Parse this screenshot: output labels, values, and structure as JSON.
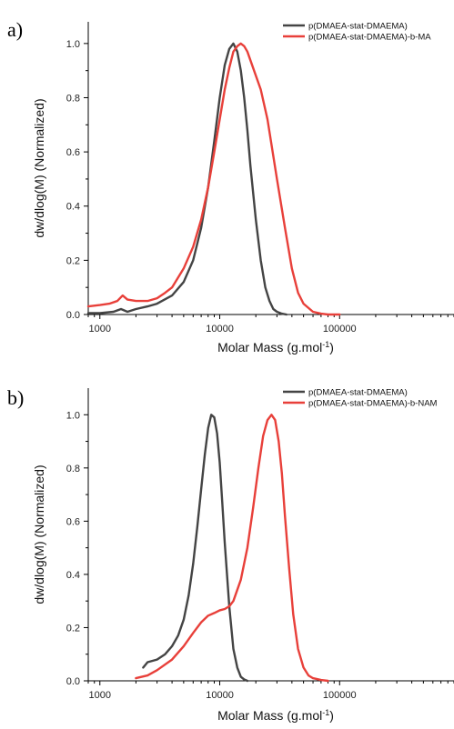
{
  "chart_data": [
    {
      "type": "line",
      "panel_label": "a)",
      "xlabel": "Molar Mass (g.mol",
      "xlabel_sup": "-1",
      "ylabel": "dw/dlog(M) (Normalized)",
      "xscale": "log",
      "xlim": [
        800,
        900000
      ],
      "ylim": [
        0,
        1.08
      ],
      "xticks": [
        1000,
        10000,
        100000
      ],
      "xtick_labels": [
        "1000",
        "10000",
        "100000"
      ],
      "yticks": [
        0.0,
        0.2,
        0.4,
        0.6,
        0.8,
        1.0
      ],
      "ytick_labels": [
        "0.0",
        "0.2",
        "0.4",
        "0.6",
        "0.8",
        "1.0"
      ],
      "legend": "top-right",
      "grid": false,
      "series": [
        {
          "name": "p(DMAEA-stat-DMAEMA)",
          "color": "#444444",
          "x": [
            800,
            1000,
            1300,
            1500,
            1700,
            2000,
            2500,
            3000,
            4000,
            5000,
            6000,
            7000,
            8000,
            9000,
            10000,
            11000,
            12000,
            13000,
            14000,
            15000,
            16000,
            17000,
            18000,
            20000,
            22000,
            24000,
            26000,
            28000,
            30000,
            33000,
            36000
          ],
          "y": [
            0.005,
            0.005,
            0.01,
            0.02,
            0.01,
            0.02,
            0.03,
            0.04,
            0.07,
            0.12,
            0.2,
            0.32,
            0.47,
            0.64,
            0.8,
            0.92,
            0.98,
            1.0,
            0.97,
            0.9,
            0.8,
            0.68,
            0.55,
            0.35,
            0.2,
            0.1,
            0.05,
            0.02,
            0.01,
            0.003,
            0.0
          ]
        },
        {
          "name": "p(DMAEA-stat-DMAEMA)-b-MA",
          "color": "#e8403a",
          "x": [
            800,
            1000,
            1200,
            1400,
            1550,
            1700,
            2000,
            2500,
            3000,
            3500,
            4000,
            5000,
            6000,
            7000,
            8000,
            9000,
            10000,
            11000,
            12000,
            13000,
            14000,
            15000,
            16000,
            17000,
            19000,
            22000,
            25000,
            30000,
            35000,
            40000,
            45000,
            50000,
            60000,
            70000,
            80000,
            100000
          ],
          "y": [
            0.03,
            0.035,
            0.04,
            0.05,
            0.07,
            0.055,
            0.05,
            0.05,
            0.06,
            0.08,
            0.1,
            0.17,
            0.25,
            0.35,
            0.47,
            0.6,
            0.72,
            0.83,
            0.91,
            0.97,
            0.99,
            1.0,
            0.99,
            0.97,
            0.91,
            0.83,
            0.72,
            0.5,
            0.32,
            0.17,
            0.08,
            0.04,
            0.01,
            0.003,
            0.0,
            0.0
          ]
        }
      ]
    },
    {
      "type": "line",
      "panel_label": "b)",
      "xlabel": "Molar Mass (g.mol",
      "xlabel_sup": "-1",
      "ylabel": "dw/dlog(M) (Normalized)",
      "xscale": "log",
      "xlim": [
        800,
        900000
      ],
      "ylim": [
        0,
        1.1
      ],
      "xticks": [
        1000,
        10000,
        100000
      ],
      "xtick_labels": [
        "1000",
        "10000",
        "100000"
      ],
      "yticks": [
        0.0,
        0.2,
        0.4,
        0.6,
        0.8,
        1.0
      ],
      "ytick_labels": [
        "0.0",
        "0.2",
        "0.4",
        "0.6",
        "0.8",
        "1.0"
      ],
      "legend": "top-right",
      "grid": false,
      "series": [
        {
          "name": "p(DMAEA-stat-DMAEMA)",
          "color": "#444444",
          "x": [
            2300,
            2500,
            3000,
            3500,
            4000,
            4500,
            5000,
            5500,
            6000,
            6500,
            7000,
            7500,
            8000,
            8500,
            9000,
            9500,
            10000,
            10500,
            11000,
            12000,
            13000,
            14000,
            15000,
            16000,
            17000
          ],
          "y": [
            0.05,
            0.07,
            0.08,
            0.1,
            0.13,
            0.17,
            0.23,
            0.32,
            0.44,
            0.58,
            0.72,
            0.85,
            0.95,
            1.0,
            0.99,
            0.93,
            0.82,
            0.67,
            0.52,
            0.28,
            0.12,
            0.05,
            0.015,
            0.005,
            0.0
          ]
        },
        {
          "name": "p(DMAEA-stat-DMAEMA)-b-NAM",
          "color": "#e8403a",
          "x": [
            2000,
            2500,
            3000,
            4000,
            5000,
            6000,
            7000,
            8000,
            9000,
            10000,
            11000,
            12000,
            13000,
            15000,
            17000,
            19000,
            21000,
            23000,
            25000,
            27000,
            29000,
            31000,
            33000,
            35000,
            38000,
            41000,
            45000,
            50000,
            55000,
            60000,
            70000,
            80000
          ],
          "y": [
            0.01,
            0.02,
            0.04,
            0.08,
            0.13,
            0.18,
            0.22,
            0.245,
            0.255,
            0.265,
            0.27,
            0.28,
            0.3,
            0.38,
            0.5,
            0.65,
            0.8,
            0.92,
            0.98,
            1.0,
            0.98,
            0.9,
            0.78,
            0.62,
            0.42,
            0.25,
            0.12,
            0.05,
            0.02,
            0.01,
            0.003,
            0.0
          ]
        }
      ]
    }
  ]
}
